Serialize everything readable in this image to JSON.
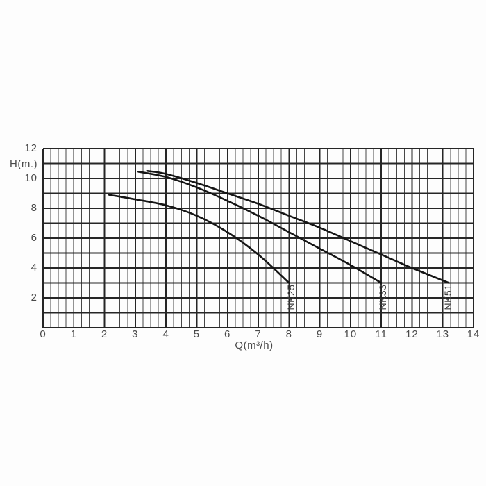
{
  "page": {
    "background": "#fdfdfd",
    "text_color": "#4a4a4a"
  },
  "chart_data": {
    "type": "line",
    "title": "",
    "xlabel": "Q(m³/h)",
    "ylabel": "H(m.)",
    "xlim": [
      0,
      14
    ],
    "ylim": [
      0,
      12
    ],
    "x_ticks": [
      "0",
      "1",
      "2",
      "3",
      "4",
      "5",
      "6",
      "7",
      "8",
      "9",
      "10",
      "11",
      "12",
      "13",
      "14"
    ],
    "y_ticks": [
      "12",
      "10",
      "8",
      "6",
      "4",
      "2"
    ],
    "y_tick_values": [
      12,
      10,
      8,
      6,
      4,
      2
    ],
    "x_minor_step": 0.25,
    "grid": "on",
    "legend_position": "curve-end-labels",
    "grid_major_color": "#262626",
    "grid_minor_color": "#474747",
    "line_color": "#151515",
    "series": [
      {
        "name": "NK25",
        "x": [
          2.15,
          3,
          4,
          5,
          6,
          7,
          8
        ],
        "y": [
          8.9,
          8.6,
          8.2,
          7.5,
          6.4,
          4.9,
          3.0
        ],
        "label_pos": {
          "x": 8.06,
          "y": 2.05
        }
      },
      {
        "name": "NK33",
        "x": [
          3.1,
          4,
          5,
          6,
          7,
          8,
          9,
          10,
          11
        ],
        "y": [
          10.45,
          10.1,
          9.4,
          8.5,
          7.5,
          6.4,
          5.3,
          4.2,
          3.0
        ],
        "label_pos": {
          "x": 11.05,
          "y": 2.05
        }
      },
      {
        "name": "NK51",
        "x": [
          3.4,
          4,
          5,
          6,
          7,
          8,
          9,
          10,
          11,
          12,
          13.2
        ],
        "y": [
          10.5,
          10.3,
          9.7,
          9.0,
          8.3,
          7.5,
          6.7,
          5.8,
          4.9,
          4.0,
          3.0
        ],
        "label_pos": {
          "x": 13.17,
          "y": 2.05
        }
      }
    ]
  }
}
